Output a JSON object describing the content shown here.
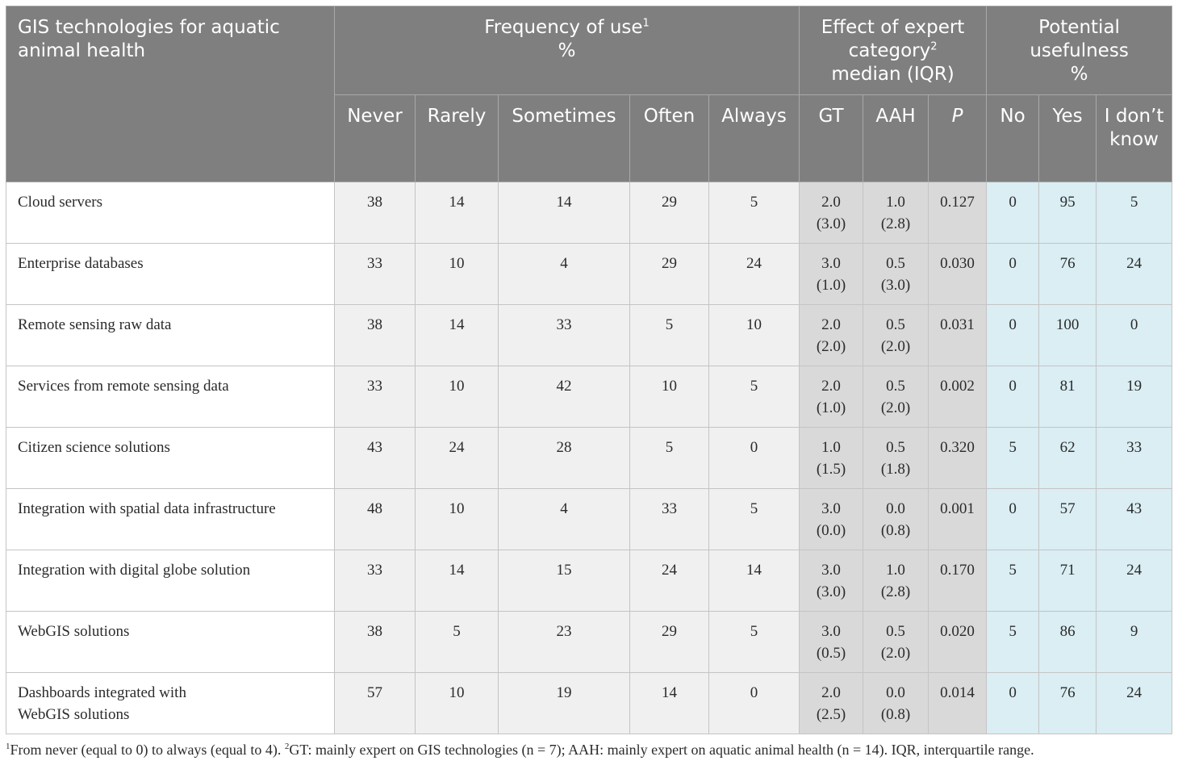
{
  "table": {
    "header": {
      "technologies": "GIS technologies for aquatic animal health",
      "frequency_title": "Frequency of use",
      "frequency_sup": "1",
      "frequency_unit": "%",
      "effect_title_line1": "Effect of expert",
      "effect_title_line2": "category",
      "effect_sup": "2",
      "effect_title_line3": "median (IQR)",
      "usefulness_title_line1": "Potential",
      "usefulness_title_line2": "usefulness",
      "usefulness_unit": "%",
      "sub": {
        "never": "Never",
        "rarely": "Rarely",
        "sometimes": "Sometimes",
        "often": "Often",
        "always": "Always",
        "gt": "GT",
        "aah": "AAH",
        "p": "P",
        "no": "No",
        "yes": "Yes",
        "dont_know": "I don’t know"
      }
    },
    "rows": [
      {
        "label": "Cloud servers",
        "label2": "",
        "never": "38",
        "rarely": "14",
        "sometimes": "14",
        "often": "29",
        "always": "5",
        "gt_median": "2.0",
        "gt_iqr": "(3.0)",
        "aah_median": "1.0",
        "aah_iqr": "(2.8)",
        "p": "0.127",
        "no": "0",
        "yes": "95",
        "dont_know": "5"
      },
      {
        "label": "Enterprise databases",
        "label2": "",
        "never": "33",
        "rarely": "10",
        "sometimes": "4",
        "often": "29",
        "always": "24",
        "gt_median": "3.0",
        "gt_iqr": "(1.0)",
        "aah_median": "0.5",
        "aah_iqr": "(3.0)",
        "p": "0.030",
        "no": "0",
        "yes": "76",
        "dont_know": "24"
      },
      {
        "label": "Remote sensing raw data",
        "label2": "",
        "never": "38",
        "rarely": "14",
        "sometimes": "33",
        "often": "5",
        "always": "10",
        "gt_median": "2.0",
        "gt_iqr": "(2.0)",
        "aah_median": "0.5",
        "aah_iqr": "(2.0)",
        "p": "0.031",
        "no": "0",
        "yes": "100",
        "dont_know": "0"
      },
      {
        "label": "Services from remote sensing data",
        "label2": "",
        "never": "33",
        "rarely": "10",
        "sometimes": "42",
        "often": "10",
        "always": "5",
        "gt_median": "2.0",
        "gt_iqr": "(1.0)",
        "aah_median": "0.5",
        "aah_iqr": "(2.0)",
        "p": "0.002",
        "no": "0",
        "yes": "81",
        "dont_know": "19"
      },
      {
        "label": "Citizen science solutions",
        "label2": "",
        "never": "43",
        "rarely": "24",
        "sometimes": "28",
        "often": "5",
        "always": "0",
        "gt_median": "1.0",
        "gt_iqr": "(1.5)",
        "aah_median": "0.5",
        "aah_iqr": "(1.8)",
        "p": "0.320",
        "no": "5",
        "yes": "62",
        "dont_know": "33"
      },
      {
        "label": "Integration with spatial data infrastructure",
        "label2": "",
        "never": "48",
        "rarely": "10",
        "sometimes": "4",
        "often": "33",
        "always": "5",
        "gt_median": "3.0",
        "gt_iqr": "(0.0)",
        "aah_median": "0.0",
        "aah_iqr": "(0.8)",
        "p": "0.001",
        "no": "0",
        "yes": "57",
        "dont_know": "43"
      },
      {
        "label": "Integration with digital globe solution",
        "label2": "",
        "never": "33",
        "rarely": "14",
        "sometimes": "15",
        "often": "24",
        "always": "14",
        "gt_median": "3.0",
        "gt_iqr": "(3.0)",
        "aah_median": "1.0",
        "aah_iqr": "(2.8)",
        "p": "0.170",
        "no": "5",
        "yes": "71",
        "dont_know": "24"
      },
      {
        "label": "WebGIS solutions",
        "label2": "",
        "never": "38",
        "rarely": "5",
        "sometimes": "23",
        "often": "29",
        "always": "5",
        "gt_median": "3.0",
        "gt_iqr": "(0.5)",
        "aah_median": "0.5",
        "aah_iqr": "(2.0)",
        "p": "0.020",
        "no": "5",
        "yes": "86",
        "dont_know": "9"
      },
      {
        "label": "Dashboards integrated with",
        "label2": "WebGIS solutions",
        "never": "57",
        "rarely": "10",
        "sometimes": "19",
        "often": "14",
        "always": "0",
        "gt_median": "2.0",
        "gt_iqr": "(2.5)",
        "aah_median": "0.0",
        "aah_iqr": "(0.8)",
        "p": "0.014",
        "no": "0",
        "yes": "76",
        "dont_know": "24"
      }
    ],
    "colors": {
      "header_bg": "#7f7f7f",
      "frequency_bg": "#f0f0f0",
      "effect_bg": "#d9d9d9",
      "usefulness_bg": "#daeef3"
    }
  },
  "footnote": {
    "sup1": "1",
    "text1": "From never (equal to 0) to always (equal to 4). ",
    "sup2": "2",
    "text2": "GT: mainly expert on GIS technologies (n = 7); AAH: mainly expert on aquatic animal health (n = 14). IQR, interquartile range."
  }
}
